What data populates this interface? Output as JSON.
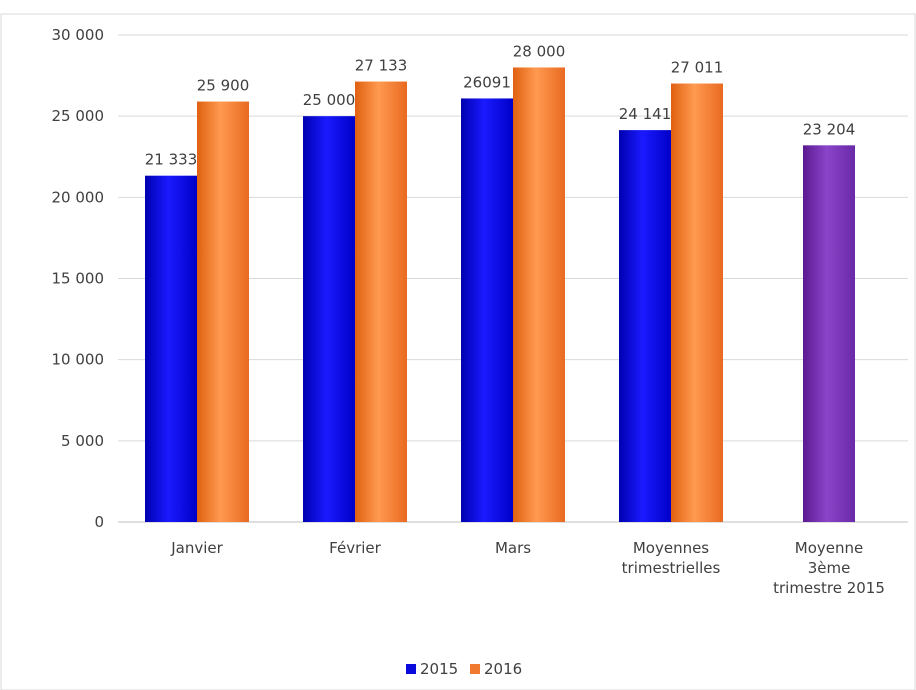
{
  "chart_data": {
    "type": "bar",
    "categories": [
      [
        "Janvier"
      ],
      [
        "Février"
      ],
      [
        "Mars"
      ],
      [
        "Moyennes",
        "trimestrielles"
      ],
      [
        "Moyenne",
        "3ème",
        "trimestre 2015"
      ]
    ],
    "series": [
      {
        "name": "2015",
        "color": "#0a0adc",
        "values": [
          21333,
          25000,
          26091,
          24141,
          null
        ],
        "labels": [
          "21 333",
          "25 000",
          "26091",
          "24 141",
          ""
        ]
      },
      {
        "name": "2016",
        "color": "#f07a30",
        "values": [
          25900,
          27133,
          28000,
          27011,
          null
        ],
        "labels": [
          "25 900",
          "27 133",
          "28 000",
          "27 011",
          ""
        ]
      },
      {
        "name": "",
        "color": "#7030a0",
        "values": [
          null,
          null,
          null,
          null,
          23204
        ],
        "labels": [
          "",
          "",
          "",
          "",
          "23 204"
        ]
      }
    ],
    "y_ticks": [
      0,
      5000,
      10000,
      15000,
      20000,
      25000,
      30000
    ],
    "y_tick_labels": [
      "0",
      "5 000",
      "10 000",
      "15 000",
      "20 000",
      "25 000",
      "30 000"
    ],
    "ylim": [
      0,
      30000
    ],
    "grid": true,
    "legend": {
      "position": "bottom",
      "entries": [
        "2015",
        "2016"
      ]
    }
  }
}
